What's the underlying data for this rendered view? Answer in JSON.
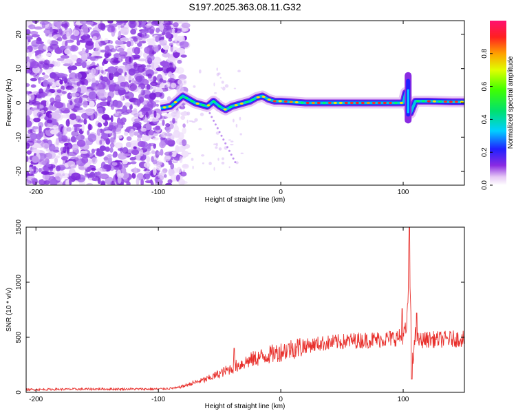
{
  "title": "S197.2025.363.08.11.G32",
  "chart_data": [
    {
      "type": "heatmap",
      "xlabel": "Height of straight line (km)",
      "ylabel": "Frequency (Hz)",
      "xlim": [
        -208,
        150
      ],
      "ylim": [
        -24,
        24
      ],
      "x_ticks": [
        -200,
        -100,
        0,
        100
      ],
      "y_ticks": [
        -20,
        -10,
        0,
        10,
        20
      ],
      "noise_region_x": [
        -208,
        -82
      ],
      "signal_track": {
        "x": [
          -98,
          -90,
          -85,
          -80,
          -75,
          -70,
          -65,
          -60,
          -55,
          -50,
          -45,
          -40,
          -35,
          -30,
          -25,
          -20,
          -15,
          -10,
          -5,
          0,
          20,
          40,
          60,
          80,
          95,
          100,
          102,
          104,
          106,
          110,
          120,
          140,
          150
        ],
        "freq": [
          -1.5,
          -1,
          0.5,
          2,
          1,
          0,
          -0.5,
          -1,
          0.5,
          -1,
          -2,
          -1,
          -0.5,
          0,
          0.5,
          1.5,
          2,
          1,
          0.5,
          0.5,
          0,
          0,
          0,
          0,
          0,
          0,
          3,
          -1,
          -3,
          0.5,
          0.5,
          0.3,
          0.3
        ]
      },
      "colorbar": {
        "label": "Normalized spectral amplitude",
        "range": [
          0,
          1
        ],
        "ticks": [
          0.0,
          0.2,
          0.4,
          0.6,
          0.8
        ]
      }
    },
    {
      "type": "line",
      "xlabel": "Height of straight line (km)",
      "ylabel": "SNR (10 * v/v)",
      "xlim": [
        -208,
        150
      ],
      "ylim": [
        0,
        1500
      ],
      "x_ticks": [
        -200,
        -100,
        0,
        100
      ],
      "y_ticks": [
        0,
        500,
        1000,
        1500
      ],
      "series": [
        {
          "name": "SNR",
          "color": "#e8302c",
          "x": [
            -208,
            -180,
            -150,
            -120,
            -100,
            -85,
            -80,
            -70,
            -60,
            -50,
            -40,
            -30,
            -20,
            -10,
            0,
            10,
            20,
            30,
            40,
            50,
            60,
            70,
            80,
            90,
            98,
            100,
            103,
            104,
            105,
            106,
            108,
            110,
            112,
            120,
            130,
            140,
            150
          ],
          "y": [
            25,
            28,
            30,
            30,
            30,
            40,
            55,
            90,
            120,
            170,
            220,
            270,
            310,
            340,
            370,
            400,
            420,
            440,
            450,
            460,
            470,
            475,
            480,
            490,
            500,
            520,
            580,
            900,
            1550,
            700,
            300,
            520,
            470,
            480,
            480,
            485,
            490
          ]
        }
      ],
      "spikes": [
        {
          "x": -38,
          "y": 400
        },
        {
          "x": 99,
          "y": 760
        },
        {
          "x": 105,
          "y": 1550
        },
        {
          "x": 107,
          "y": 120
        },
        {
          "x": 111,
          "y": 720
        }
      ]
    }
  ]
}
